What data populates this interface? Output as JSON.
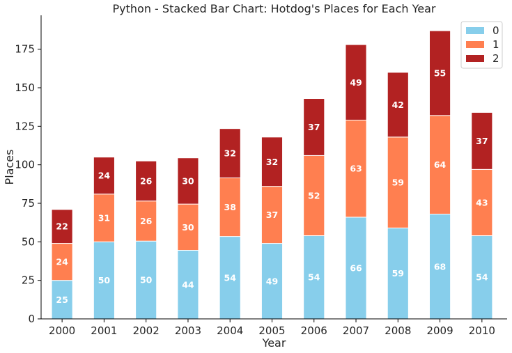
{
  "chart_data": {
    "type": "bar",
    "stacked": true,
    "title": "Python - Stacked Bar Chart: Hotdog's Places for Each Year",
    "xlabel": "Year",
    "ylabel": "Places",
    "categories": [
      "2000",
      "2001",
      "2002",
      "2003",
      "2004",
      "2005",
      "2006",
      "2007",
      "2008",
      "2009",
      "2010"
    ],
    "series": [
      {
        "name": "0",
        "color": "#87CEEB",
        "values": [
          25,
          50,
          50.5,
          44.5,
          53.5,
          49,
          54,
          66,
          59,
          68,
          54
        ]
      },
      {
        "name": "1",
        "color": "#FF7F50",
        "values": [
          24,
          31,
          26,
          30,
          38,
          37,
          52,
          63,
          59,
          64,
          43
        ]
      },
      {
        "name": "2",
        "color": "#B22222",
        "values": [
          22,
          24,
          26,
          30,
          32,
          32,
          37,
          49,
          42,
          55,
          37
        ]
      }
    ],
    "data_labels": [
      [
        "25",
        "50",
        "50",
        "44",
        "54",
        "49",
        "54",
        "66",
        "59",
        "68",
        "54"
      ],
      [
        "24",
        "31",
        "26",
        "30",
        "38",
        "37",
        "52",
        "63",
        "59",
        "64",
        "43"
      ],
      [
        "22",
        "24",
        "26",
        "30",
        "32",
        "32",
        "37",
        "49",
        "42",
        "55",
        "37"
      ]
    ],
    "ylim": [
      0,
      197
    ],
    "yticks": [
      0,
      25,
      50,
      75,
      100,
      125,
      150,
      175
    ],
    "grid": false,
    "legend_position": "top-right"
  }
}
